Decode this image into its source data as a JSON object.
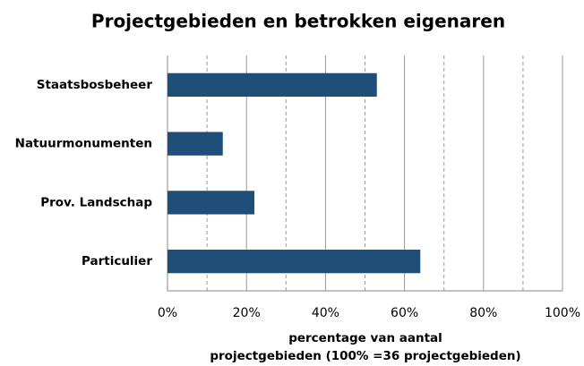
{
  "chart_data": {
    "type": "barh",
    "title": "Projectgebieden en betrokken eigenaren",
    "xlabel": [
      "percentage van aantal",
      "projectgebieden (100% =36 projectgebieden)"
    ],
    "categories": [
      "Staatsbosbeheer",
      "Natuurmonumenten",
      "Prov. Landschap",
      "Particulier"
    ],
    "values": [
      53,
      14,
      22,
      64
    ],
    "color": "#1f4e79",
    "xlim": [
      0,
      100
    ],
    "xticks": [
      {
        "value": 0,
        "label": "0%"
      },
      {
        "value": 20,
        "label": "20%"
      },
      {
        "value": 40,
        "label": "40%"
      },
      {
        "value": 60,
        "label": "60%"
      },
      {
        "value": 80,
        "label": "80%"
      },
      {
        "value": 100,
        "label": "100%"
      }
    ],
    "xminorticks": [
      10,
      30,
      50,
      70,
      90
    ],
    "grid": true
  }
}
